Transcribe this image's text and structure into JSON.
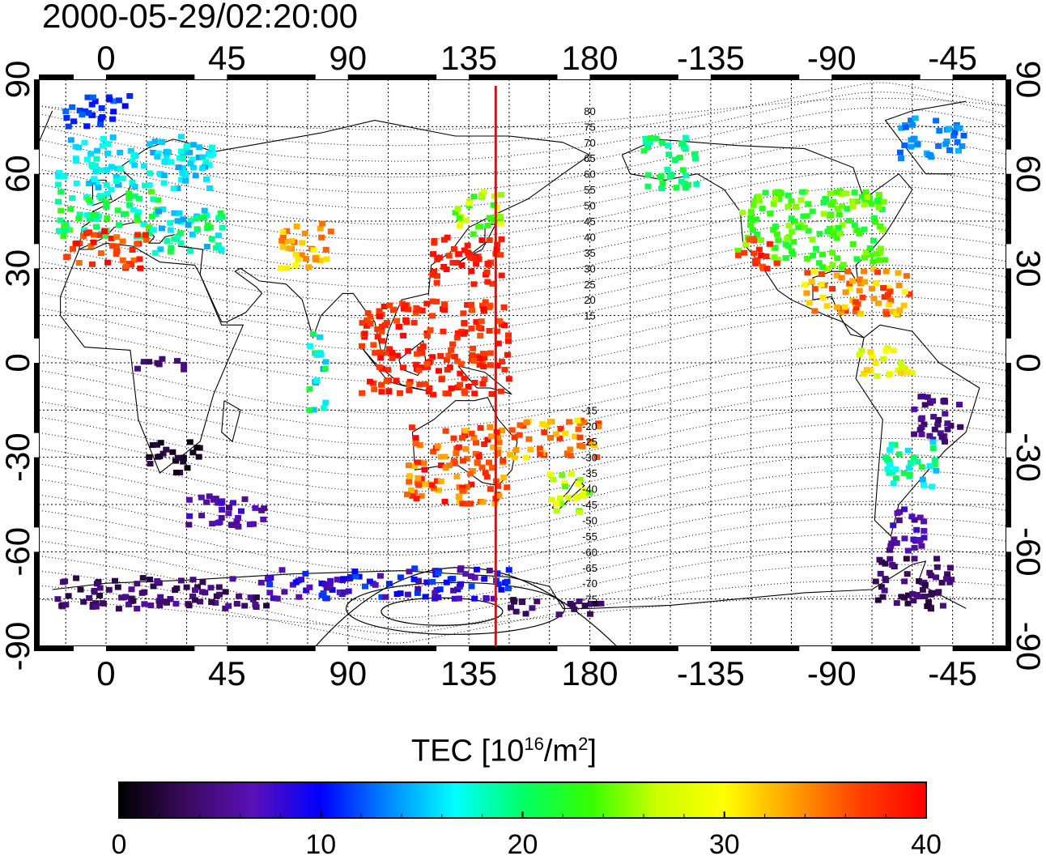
{
  "timestamp": "2000-05-29/02:20:00",
  "colorbar": {
    "title_prefix": "TEC  [10",
    "title_exp": "16",
    "title_mid": "/m",
    "title_exp2": "2",
    "title_suffix": "]",
    "min": 0,
    "max": 40,
    "ticks": [
      "0",
      "10",
      "20",
      "30",
      "40"
    ],
    "colors": [
      "#000000",
      "#3a0a5e",
      "#5a10b8",
      "#0000ff",
      "#0088ff",
      "#00ffff",
      "#00ff66",
      "#33ff00",
      "#ccff00",
      "#ffff00",
      "#ffa000",
      "#ff4000",
      "#ff0000"
    ]
  },
  "map": {
    "top_ticks": [
      "0",
      "45",
      "90",
      "135",
      "180",
      "-135",
      "-90",
      "-45"
    ],
    "bottom_ticks": [
      "0",
      "45",
      "90",
      "135",
      "180",
      "-135",
      "-90",
      "-45"
    ],
    "left_ticks": [
      "90",
      "60",
      "30",
      "0",
      "-30",
      "-60",
      "-90"
    ],
    "right_ticks": [
      "90",
      "60",
      "30",
      "0",
      "-30",
      "-60",
      "-90"
    ],
    "tick_lons": [
      0,
      45,
      90,
      135,
      180,
      225,
      270,
      315
    ],
    "tick_lats": [
      90,
      60,
      30,
      0,
      -30,
      -60,
      -90
    ],
    "lon_range": [
      -25,
      335
    ],
    "lat_range": [
      -90,
      90
    ],
    "grid": "dotted 15°",
    "highlight_meridian_lon": 145,
    "highlight_color": "#ff0000",
    "contour_labels": [
      "80",
      "75",
      "70",
      "65",
      "60",
      "55",
      "50",
      "45",
      "40",
      "35",
      "30",
      "25",
      "20",
      "15",
      "-15",
      "-20",
      "-25",
      "-30",
      "-35",
      "-40",
      "-45",
      "-50",
      "-55",
      "-60",
      "-65",
      "-70",
      "-75"
    ],
    "contour_label_lats": [
      80,
      75,
      70,
      65,
      60,
      55,
      50,
      45,
      40,
      35,
      30,
      25,
      20,
      15,
      -15,
      -20,
      -25,
      -30,
      -35,
      -40,
      -45,
      -50,
      -55,
      -60,
      -65,
      -70,
      -75
    ],
    "tec_regions": [
      {
        "lon": [
          -18,
          40
        ],
        "lat": [
          55,
          72
        ],
        "tec": [
          14,
          18
        ]
      },
      {
        "lon": [
          -18,
          20
        ],
        "lat": [
          40,
          55
        ],
        "tec": [
          17,
          24
        ]
      },
      {
        "lon": [
          -15,
          15
        ],
        "lat": [
          30,
          42
        ],
        "tec": [
          34,
          40
        ]
      },
      {
        "lon": [
          18,
          45
        ],
        "lat": [
          35,
          50
        ],
        "tec": [
          14,
          22
        ]
      },
      {
        "lon": [
          65,
          85
        ],
        "lat": [
          30,
          45
        ],
        "tec": [
          30,
          36
        ]
      },
      {
        "lon": [
          120,
          148
        ],
        "lat": [
          25,
          40
        ],
        "tec": [
          37,
          40
        ]
      },
      {
        "lon": [
          130,
          148
        ],
        "lat": [
          40,
          55
        ],
        "tec": [
          22,
          30
        ]
      },
      {
        "lon": [
          95,
          150
        ],
        "lat": [
          -10,
          20
        ],
        "tec": [
          36,
          40
        ]
      },
      {
        "lon": [
          75,
          82
        ],
        "lat": [
          -15,
          10
        ],
        "tec": [
          14,
          22
        ]
      },
      {
        "lon": [
          112,
          150
        ],
        "lat": [
          -45,
          -20
        ],
        "tec": [
          32,
          40
        ]
      },
      {
        "lon": [
          165,
          180
        ],
        "lat": [
          -48,
          -35
        ],
        "tec": [
          24,
          30
        ]
      },
      {
        "lon": [
          150,
          185
        ],
        "lat": [
          -30,
          -18
        ],
        "tec": [
          30,
          38
        ]
      },
      {
        "lon": [
          -160,
          -140
        ],
        "lat": [
          55,
          72
        ],
        "tec": [
          18,
          22
        ]
      },
      {
        "lon": [
          -125,
          -70
        ],
        "lat": [
          30,
          55
        ],
        "tec": [
          21,
          26
        ]
      },
      {
        "lon": [
          -125,
          -110
        ],
        "lat": [
          30,
          40
        ],
        "tec": [
          36,
          40
        ]
      },
      {
        "lon": [
          -100,
          -60
        ],
        "lat": [
          15,
          30
        ],
        "tec": [
          30,
          38
        ]
      },
      {
        "lon": [
          -80,
          -60
        ],
        "lat": [
          -5,
          5
        ],
        "tec": [
          26,
          32
        ]
      },
      {
        "lon": [
          -60,
          -40
        ],
        "lat": [
          -25,
          -10
        ],
        "tec": [
          3,
          6
        ]
      },
      {
        "lon": [
          -70,
          -50
        ],
        "lat": [
          -40,
          -25
        ],
        "tec": [
          14,
          22
        ]
      },
      {
        "lon": [
          -70,
          -55
        ],
        "lat": [
          -60,
          -45
        ],
        "tec": [
          4,
          8
        ]
      },
      {
        "lon": [
          -75,
          -45
        ],
        "lat": [
          -78,
          -62
        ],
        "tec": [
          2,
          5
        ]
      },
      {
        "lon": [
          15,
          35
        ],
        "lat": [
          -35,
          -25
        ],
        "tec": [
          0,
          3
        ]
      },
      {
        "lon": [
          -20,
          60
        ],
        "lat": [
          -78,
          -68
        ],
        "tec": [
          2,
          6
        ]
      },
      {
        "lon": [
          60,
          150
        ],
        "lat": [
          -75,
          -65
        ],
        "tec": [
          5,
          12
        ]
      },
      {
        "lon": [
          150,
          185
        ],
        "lat": [
          -80,
          -75
        ],
        "tec": [
          2,
          5
        ]
      },
      {
        "lon": [
          -15,
          10
        ],
        "lat": [
          75,
          85
        ],
        "tec": [
          10,
          13
        ]
      },
      {
        "lon": [
          -65,
          -40
        ],
        "lat": [
          65,
          78
        ],
        "tec": [
          12,
          15
        ]
      },
      {
        "lon": [
          30,
          60
        ],
        "lat": [
          -52,
          -42
        ],
        "tec": [
          4,
          8
        ]
      },
      {
        "lon": [
          10,
          30
        ],
        "lat": [
          -2,
          2
        ],
        "tec": [
          3,
          5
        ]
      }
    ]
  }
}
